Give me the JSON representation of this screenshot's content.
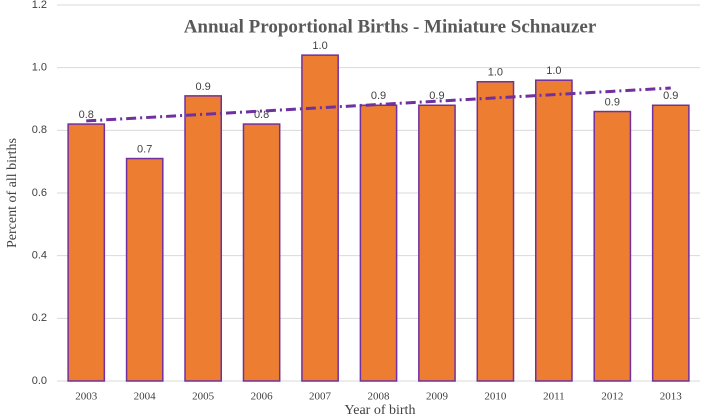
{
  "chart_data": {
    "type": "bar",
    "title": "Annual Proportional Births - Miniature Schnauzer",
    "x_label": "Year of birth",
    "y_label": "Percent of all births",
    "categories": [
      "2003",
      "2004",
      "2005",
      "2006",
      "2007",
      "2008",
      "2009",
      "2010",
      "2011",
      "2012",
      "2013"
    ],
    "values": [
      0.82,
      0.71,
      0.91,
      0.82,
      1.04,
      0.88,
      0.88,
      0.955,
      0.96,
      0.86,
      0.88
    ],
    "value_labels": [
      "0.8",
      "0.7",
      "0.9",
      "0.8",
      "1.0",
      "0.9",
      "0.9",
      "1.0",
      "1.0",
      "0.9",
      "0.9"
    ],
    "color": "#ed7d31",
    "edge_color": "#7030a0",
    "trendline": {
      "color": "#7030a0",
      "values": [
        0.83,
        0.8405,
        0.851,
        0.8615,
        0.872,
        0.8825,
        0.893,
        0.9035,
        0.914,
        0.9245,
        0.935
      ]
    },
    "ylim": [
      0,
      1.2
    ],
    "yticks": [
      {
        "value": 0,
        "label": "0.0"
      },
      0.2,
      0.4,
      0.6,
      0.8,
      {
        "value": 1,
        "label": "1.0"
      },
      1.2
    ],
    "grid": true
  }
}
